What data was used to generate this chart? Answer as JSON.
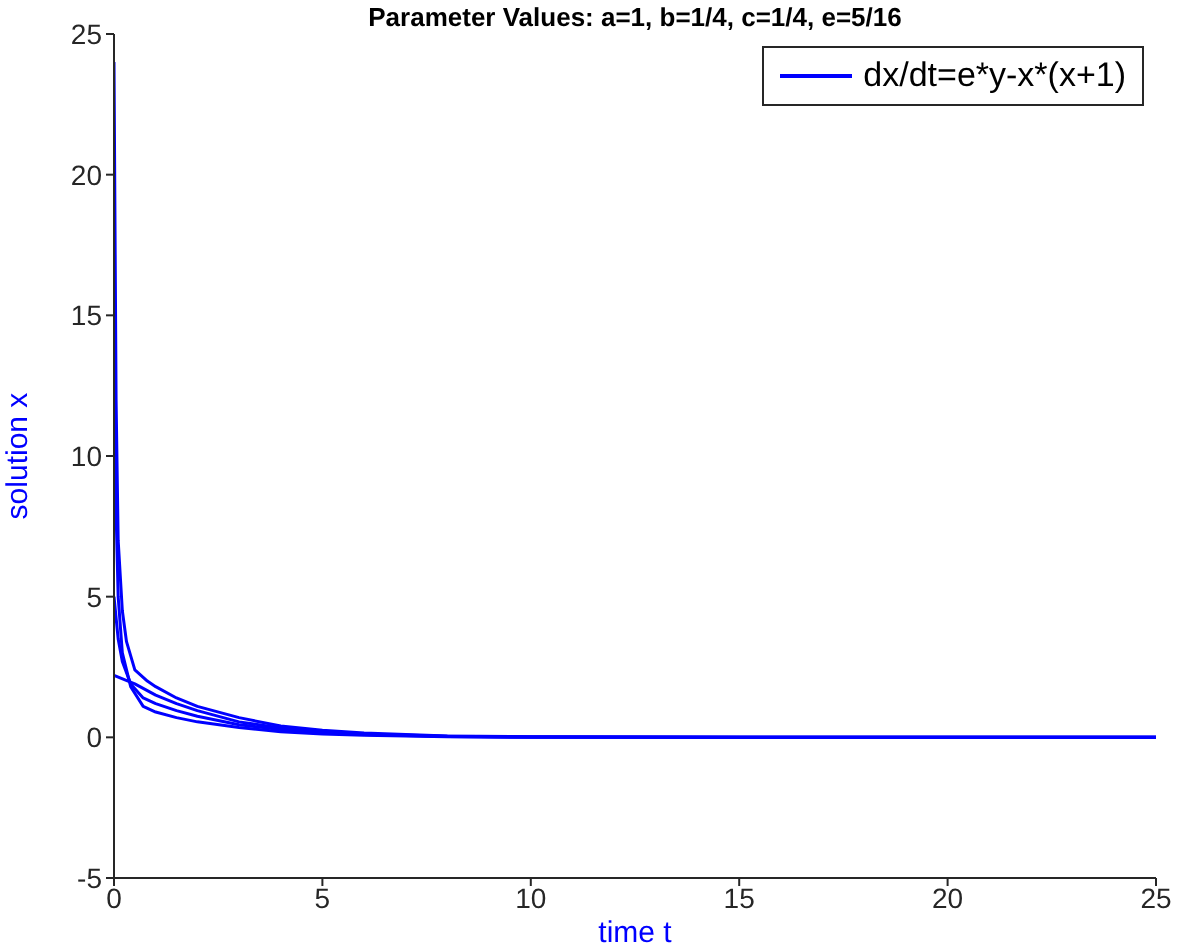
{
  "chart_data": {
    "type": "line",
    "title": "Parameter Values: a=1, b=1/4, c=1/4, e=5/16",
    "xlabel": "time t",
    "ylabel": "solution x",
    "xlim": [
      0,
      25
    ],
    "xticks": [
      0,
      5,
      10,
      15,
      20,
      25
    ],
    "ylim": [
      -5,
      25
    ],
    "yticks": [
      -5,
      0,
      5,
      10,
      15,
      20,
      25
    ],
    "legend": "top right",
    "grid": false,
    "marker": "none",
    "line_style": "solid",
    "series": [
      {
        "name": "dx/dt=e*y-x*(x+1)",
        "color": "#0000ff",
        "x": [
          0,
          0.05,
          0.1,
          0.2,
          0.3,
          0.5,
          0.8,
          1,
          1.5,
          2,
          3,
          4,
          5,
          6,
          8,
          10,
          15,
          20,
          25
        ],
        "values": [
          24,
          12,
          7,
          4.5,
          3.4,
          2.4,
          2.0,
          1.8,
          1.4,
          1.1,
          0.7,
          0.4,
          0.25,
          0.15,
          0.05,
          0.02,
          0,
          0,
          0
        ]
      },
      {
        "color": "#0000ff",
        "x": [
          0,
          0.5,
          1,
          1.5,
          2,
          3,
          4,
          5,
          6,
          8,
          10,
          15,
          25
        ],
        "values": [
          2.2,
          1.9,
          1.5,
          1.2,
          0.95,
          0.55,
          0.33,
          0.2,
          0.12,
          0.04,
          0.01,
          0,
          0
        ]
      },
      {
        "color": "#0000ff",
        "x": [
          0,
          0.05,
          0.1,
          0.2,
          0.4,
          0.7,
          1,
          1.5,
          2,
          3,
          4,
          5,
          6,
          8,
          10,
          25
        ],
        "values": [
          15,
          8,
          5,
          3,
          1.8,
          1.1,
          0.9,
          0.7,
          0.55,
          0.35,
          0.2,
          0.12,
          0.07,
          0.02,
          0,
          0
        ]
      },
      {
        "color": "#0000ff",
        "x": [
          0,
          0.1,
          0.2,
          0.4,
          0.7,
          1,
          1.5,
          2,
          3,
          4,
          5,
          6,
          8,
          10,
          25
        ],
        "values": [
          5,
          3.5,
          2.7,
          1.9,
          1.4,
          1.2,
          0.95,
          0.75,
          0.45,
          0.28,
          0.17,
          0.1,
          0.03,
          0.01,
          0
        ]
      }
    ]
  }
}
